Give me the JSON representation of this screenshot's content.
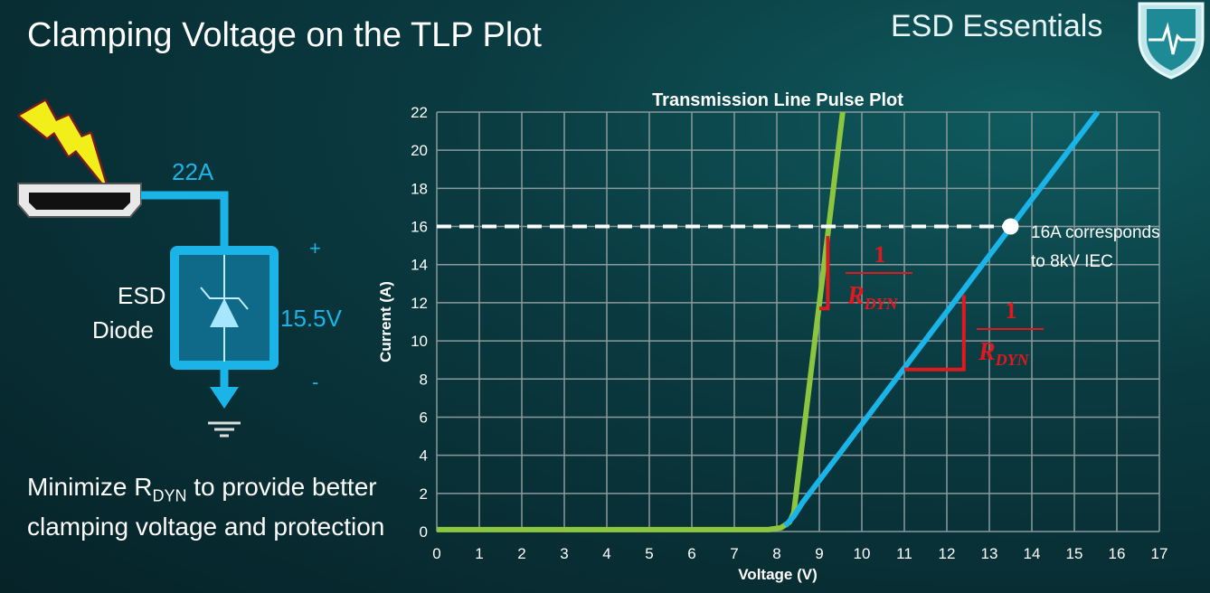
{
  "slide": {
    "title": "Clamping Voltage on the TLP Plot",
    "brand": "ESD Essentials",
    "bottom_text": {
      "pre": "Minimize R",
      "sub": "DYN",
      "post": " to provide better clamping voltage and protection"
    }
  },
  "diagram": {
    "current_label": "22A",
    "device_label_1": "ESD",
    "device_label_2": "Diode",
    "voltage_label": "15.5V",
    "plus": "+",
    "minus": "-",
    "colors": {
      "wire": "#1ab4e8",
      "lightning": "#f2ee1a"
    }
  },
  "chart_data": {
    "type": "line",
    "title": "Transmission Line Pulse Plot",
    "xlabel": "Voltage (V)",
    "ylabel": "Current (A)",
    "xlim": [
      0,
      17
    ],
    "ylim": [
      0,
      22
    ],
    "xticks": [
      0,
      1,
      2,
      3,
      4,
      5,
      6,
      7,
      8,
      9,
      10,
      11,
      12,
      13,
      14,
      15,
      16,
      17
    ],
    "yticks": [
      0,
      2,
      4,
      6,
      8,
      10,
      12,
      14,
      16,
      18,
      20,
      22
    ],
    "grid": true,
    "series": [
      {
        "color": "#8cc63f",
        "x": [
          0,
          7.8,
          8.1,
          8.3,
          8.4,
          9.55
        ],
        "y": [
          0.1,
          0.1,
          0.2,
          0.5,
          1.0,
          22
        ]
      },
      {
        "color": "#1ab4e8",
        "x": [
          8.2,
          8.4,
          8.6,
          15.55
        ],
        "y": [
          0.3,
          0.8,
          1.5,
          22
        ]
      }
    ],
    "reference_line": {
      "y": 16,
      "x_end": 13.5,
      "color": "#ffffff"
    },
    "marker": {
      "x": 13.5,
      "y": 16
    },
    "annotation": {
      "line1": "16A corresponds",
      "line2": "to 8kV IEC"
    },
    "slope_label": {
      "numerator": "1",
      "denominator": "R",
      "sub": "DYN",
      "color": "#e0191e"
    }
  }
}
